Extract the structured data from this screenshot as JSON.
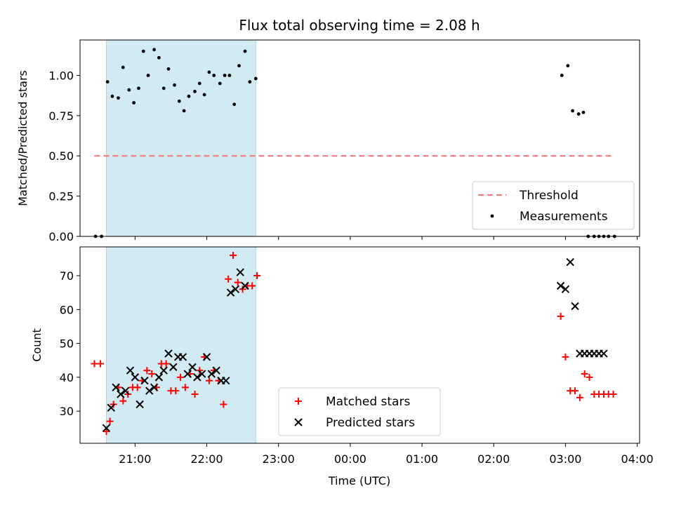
{
  "chart_data": {
    "title": "Flux total observing time = 2.08 h",
    "xlabel": "Time (UTC)",
    "x_ticks": [
      "21:00",
      "22:00",
      "23:00",
      "00:00",
      "01:00",
      "02:00",
      "03:00",
      "04:00"
    ],
    "shaded_span": {
      "start": "20:36",
      "end": "22:41",
      "color": "#add8e6"
    },
    "x_range": [
      "20:14",
      "04:02"
    ],
    "panels": [
      {
        "type": "scatter",
        "ylabel": "Matched/Predicted stars",
        "ylim": [
          0,
          1.22
        ],
        "y_ticks": [
          "0.00",
          "0.25",
          "0.50",
          "0.75",
          "1.00"
        ],
        "legend": "bottom-right",
        "series": [
          {
            "name": "Threshold",
            "kind": "dashed-line",
            "color": "#f08080",
            "x": [
              "20:26",
              "03:40"
            ],
            "y": [
              0.5,
              0.5
            ]
          },
          {
            "name": "Measurements",
            "kind": "dot",
            "color": "#000000",
            "x": [
              "20:27",
              "20:32",
              "20:37",
              "20:41",
              "20:46",
              "20:50",
              "20:55",
              "20:59",
              "21:03",
              "21:07",
              "21:11",
              "21:16",
              "21:20",
              "21:24",
              "21:28",
              "21:33",
              "21:37",
              "21:41",
              "21:45",
              "21:50",
              "21:54",
              "21:58",
              "22:02",
              "22:06",
              "22:11",
              "22:15",
              "22:19",
              "22:23",
              "22:27",
              "22:32",
              "22:36",
              "22:41",
              "02:57",
              "03:02",
              "03:06",
              "03:11",
              "03:15",
              "03:19",
              "03:24",
              "03:28",
              "03:32",
              "03:36",
              "03:41"
            ],
            "y": [
              0.0,
              0.0,
              0.96,
              0.87,
              0.86,
              1.05,
              0.91,
              0.83,
              0.92,
              1.15,
              1.0,
              1.16,
              1.11,
              0.92,
              1.04,
              0.94,
              0.84,
              0.78,
              0.87,
              0.9,
              0.95,
              0.88,
              1.02,
              1.0,
              0.95,
              1.0,
              1.0,
              0.82,
              1.06,
              1.15,
              0.96,
              0.98,
              1.0,
              1.06,
              0.78,
              0.76,
              0.77,
              0.0,
              0.0,
              0.0,
              0.0,
              0.0,
              0.0
            ]
          }
        ]
      },
      {
        "type": "scatter",
        "ylabel": "Count",
        "ylim": [
          20.5,
          78.5
        ],
        "y_ticks": [
          "30",
          "40",
          "50",
          "60",
          "70"
        ],
        "legend": "bottom-center",
        "series": [
          {
            "name": "Matched stars",
            "kind": "plus",
            "color": "#ff0000",
            "x": [
              "20:26",
              "20:31",
              "20:36",
              "20:39",
              "20:42",
              "20:46",
              "20:50",
              "20:54",
              "20:58",
              "21:02",
              "21:06",
              "21:10",
              "21:14",
              "21:18",
              "21:22",
              "21:26",
              "21:30",
              "21:34",
              "21:38",
              "21:42",
              "21:46",
              "21:50",
              "21:54",
              "21:58",
              "22:02",
              "22:06",
              "22:10",
              "22:14",
              "22:18",
              "22:22",
              "22:26",
              "22:30",
              "22:34",
              "22:38",
              "22:42",
              "02:56",
              "03:00",
              "03:04",
              "03:08",
              "03:12",
              "03:16",
              "03:20",
              "03:24",
              "03:28",
              "03:32",
              "03:36",
              "03:40"
            ],
            "y": [
              44,
              44,
              24,
              27,
              32,
              37,
              33,
              35,
              37,
              37,
              39,
              42,
              41,
              37,
              44,
              44,
              36,
              36,
              40,
              37,
              41,
              35,
              42,
              46,
              39,
              42,
              39,
              32,
              69,
              76,
              68,
              66,
              67,
              67,
              70,
              58,
              46,
              36,
              36,
              34,
              41,
              40,
              35,
              35,
              35,
              35,
              35
            ],
            "note": "values read off chart"
          },
          {
            "name": "Predicted stars",
            "kind": "x",
            "color": "#000000",
            "x": [
              "20:36",
              "20:40",
              "20:44",
              "20:48",
              "20:52",
              "20:56",
              "21:00",
              "21:04",
              "21:08",
              "21:12",
              "21:16",
              "21:20",
              "21:24",
              "21:28",
              "21:32",
              "21:36",
              "21:40",
              "21:44",
              "21:48",
              "21:52",
              "21:56",
              "22:00",
              "22:04",
              "22:08",
              "22:12",
              "22:16",
              "22:20",
              "22:24",
              "22:28",
              "22:32",
              "02:56",
              "03:00",
              "03:04",
              "03:08",
              "03:12",
              "03:16",
              "03:20",
              "03:24",
              "03:28",
              "03:32"
            ],
            "y": [
              25,
              31,
              37,
              35,
              36,
              42,
              40,
              32,
              39,
              36,
              37,
              40,
              42,
              47,
              43,
              46,
              46,
              41,
              43,
              40,
              41,
              46,
              41,
              42,
              39,
              39,
              65,
              66,
              71,
              67,
              67,
              66,
              74,
              61,
              47,
              47,
              47,
              47,
              47,
              47
            ]
          }
        ]
      }
    ]
  }
}
